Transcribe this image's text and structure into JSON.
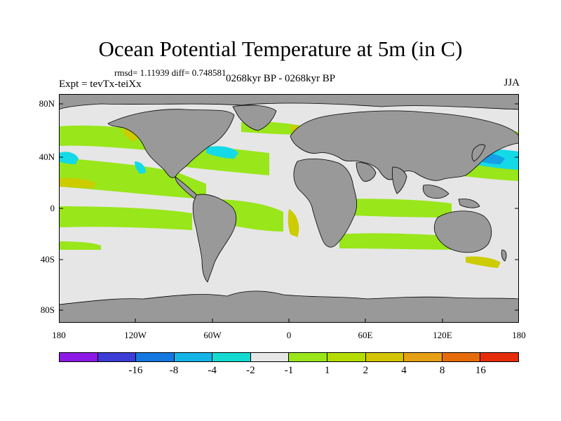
{
  "title": "Ocean Potential Temperature at 5m (in C)",
  "stats": "rmsd= 1.11939 diff= 0.748581",
  "left_label": "Expt = tevTx-teiXx",
  "center_label": "0268kyr BP - 0268kyr BP",
  "right_label": "JJA",
  "map": {
    "lat_ticks": [
      "80N",
      "40N",
      "0",
      "40S",
      "80S"
    ],
    "lon_ticks": [
      "180",
      "120W",
      "60W",
      "0",
      "60E",
      "120E",
      "180"
    ],
    "colors": {
      "land": "#999999",
      "ocean_neutral": "#e6e6e6",
      "warm_green": "#99e61a",
      "warm_yellow": "#cccc00",
      "cool_cyan": "#14d9e6",
      "cool_blue": "#14a0e6"
    }
  },
  "colorbar": {
    "colors": [
      "#8c19e6",
      "#3c3cd6",
      "#1478e0",
      "#14b4e6",
      "#14d9d0",
      "#e6e6e6",
      "#99e61a",
      "#b4dc00",
      "#d4c400",
      "#e6a014",
      "#e66b0a",
      "#e62d0a"
    ],
    "labels": [
      "-16",
      "-8",
      "-4",
      "-2",
      "-1",
      "1",
      "2",
      "4",
      "8",
      "16"
    ]
  }
}
